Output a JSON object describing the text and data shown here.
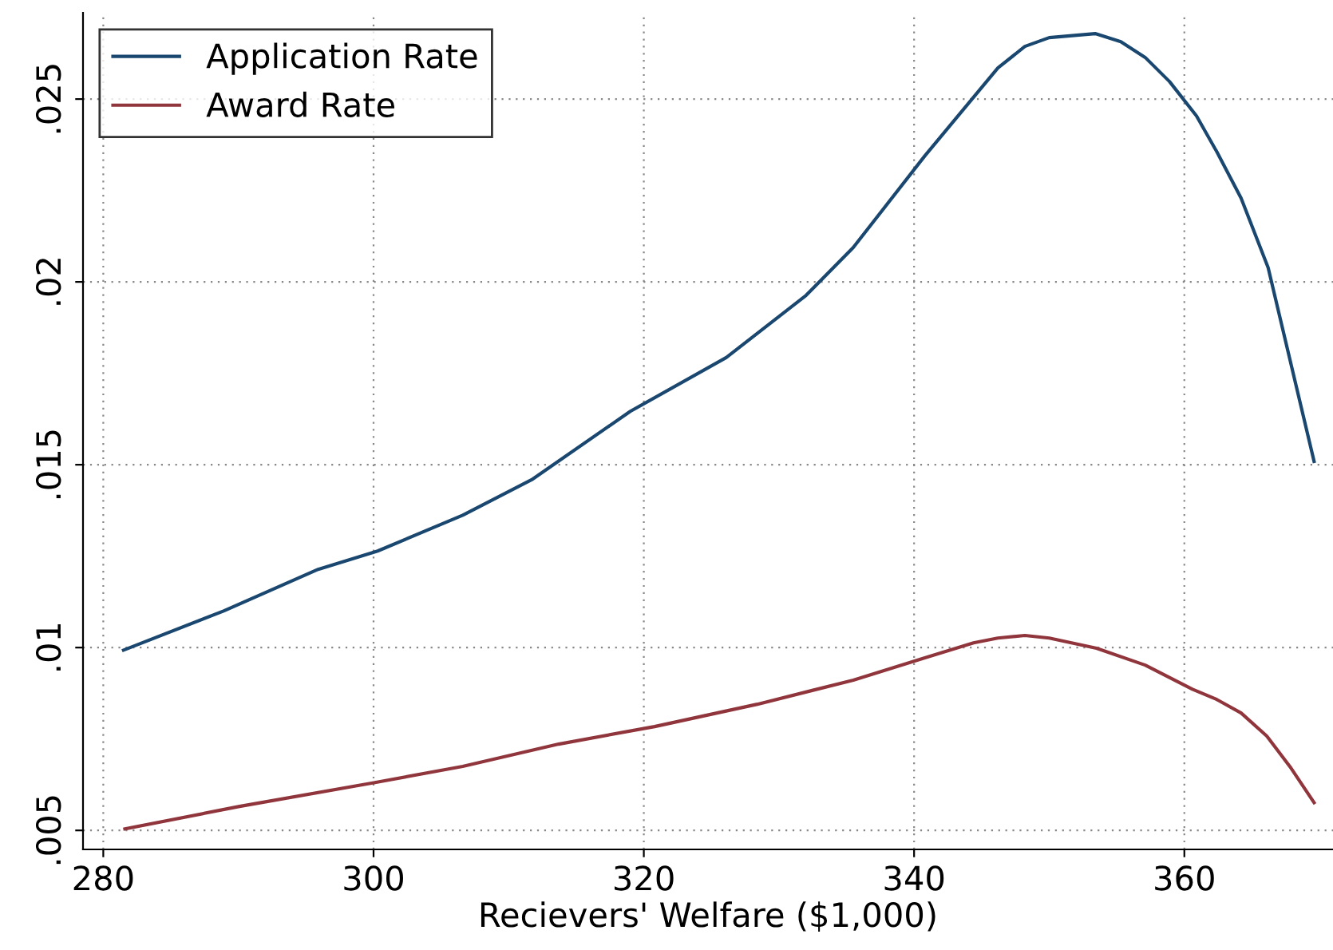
{
  "chart_data": {
    "type": "line",
    "xlabel": "Recievers' Welfare ($1,000)",
    "xlim": [
      278.5,
      371
    ],
    "xticks": [
      280,
      300,
      320,
      340,
      360
    ],
    "ylim": [
      0.00448,
      0.02736
    ],
    "yticks": [
      {
        "value": 0.005,
        "label": ".005"
      },
      {
        "value": 0.01,
        "label": ".01"
      },
      {
        "value": 0.015,
        "label": ".015"
      },
      {
        "value": 0.02,
        "label": ".02"
      },
      {
        "value": 0.025,
        "label": ".025"
      }
    ],
    "grid": true,
    "legend": "top left",
    "line_style": "solid",
    "marker": "none",
    "series": [
      {
        "name": "Application Rate",
        "color": "#1a476f",
        "x": [
          281.5,
          288.9,
          295.9,
          300.3,
          306.6,
          311.7,
          319.0,
          326.1,
          332.0,
          335.5,
          340.8,
          346.2,
          348.2,
          350.0,
          353.4,
          355.3,
          357.1,
          358.9,
          360.9,
          362.4,
          364.2,
          366.2,
          369.6
        ],
        "values": [
          0.00993,
          0.011,
          0.01214,
          0.01264,
          0.01362,
          0.01459,
          0.01646,
          0.01793,
          0.01963,
          0.02094,
          0.02345,
          0.02585,
          0.02644,
          0.02668,
          0.02679,
          0.02657,
          0.02614,
          0.02548,
          0.02454,
          0.02356,
          0.02229,
          0.02039,
          0.01509
        ]
      },
      {
        "name": "Award Rate",
        "color": "#90353b",
        "x": [
          281.6,
          290.0,
          300.1,
          306.6,
          313.7,
          320.8,
          328.4,
          335.5,
          340.8,
          344.4,
          346.2,
          348.2,
          350.0,
          353.5,
          357.1,
          360.6,
          362.4,
          364.2,
          366.1,
          367.9,
          369.6
        ],
        "values": [
          0.00504,
          0.00565,
          0.00631,
          0.00675,
          0.00736,
          0.00784,
          0.00845,
          0.00911,
          0.00972,
          0.01013,
          0.01026,
          0.01033,
          0.01026,
          0.00998,
          0.00952,
          0.00886,
          0.00858,
          0.00821,
          0.00758,
          0.0067,
          0.00576
        ]
      }
    ]
  }
}
